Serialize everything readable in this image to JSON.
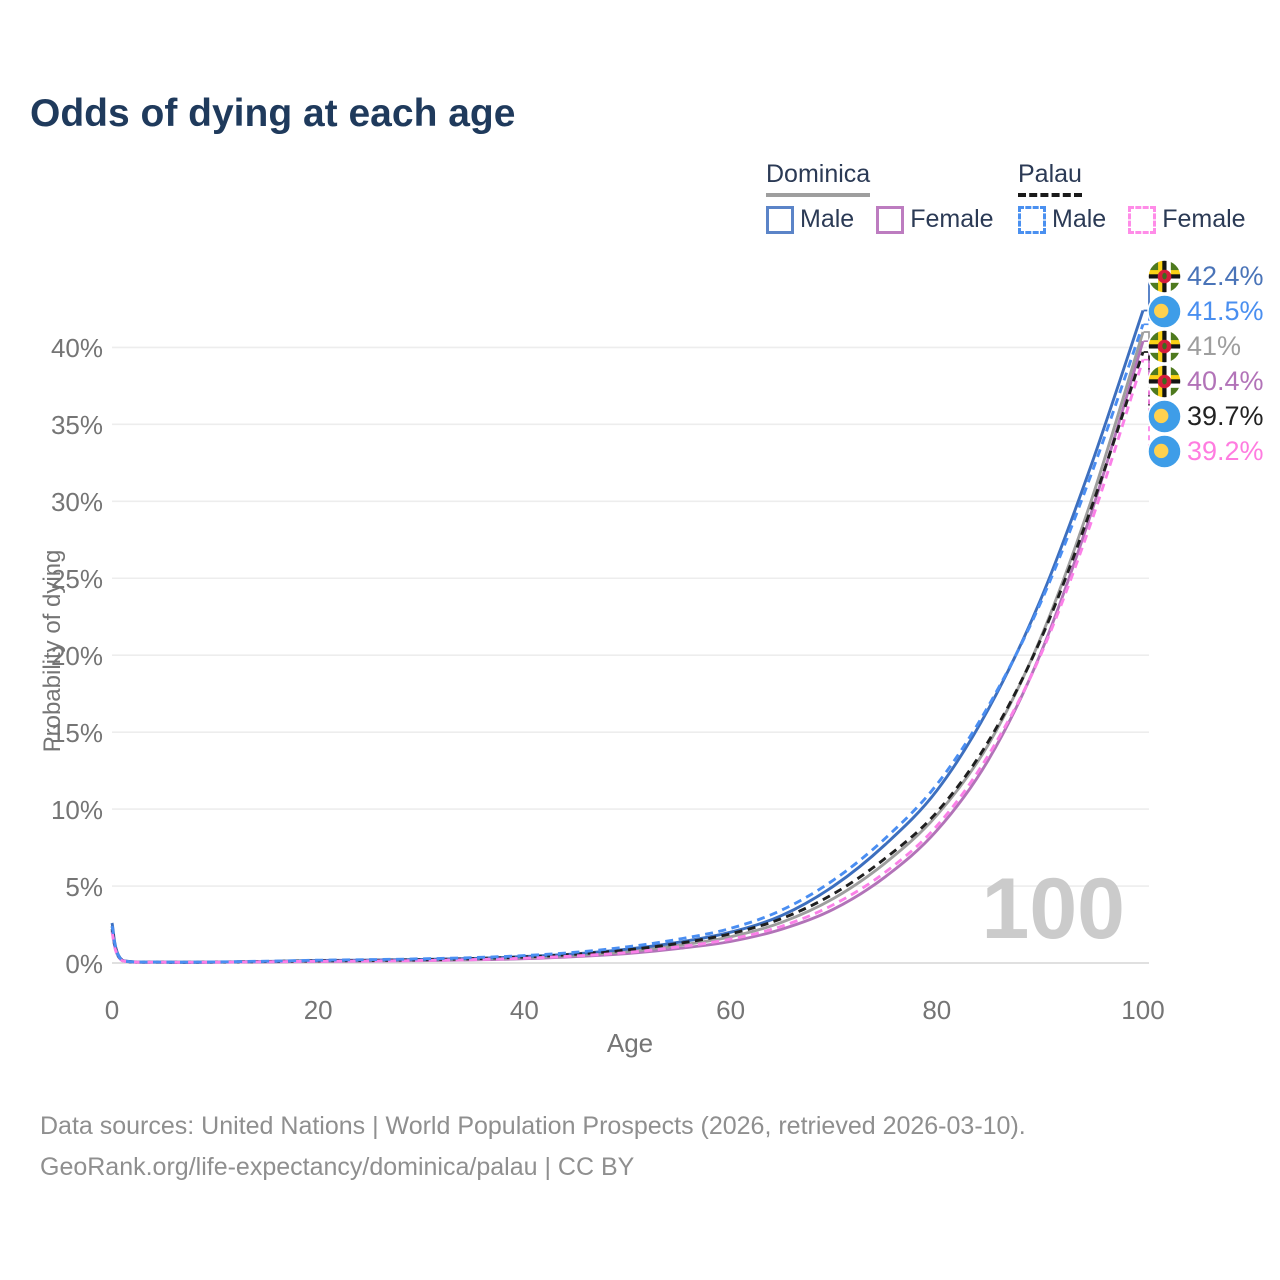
{
  "title": "Odds of dying at each age",
  "age_indicator": "100",
  "legend": {
    "groups": [
      {
        "country": "Dominica",
        "line_style": "solid",
        "underline_color": "#9e9e9e",
        "items": [
          {
            "label": "Male",
            "color": "#5b84c8"
          },
          {
            "label": "Female",
            "color": "#bd7cc0"
          }
        ]
      },
      {
        "country": "Palau",
        "line_style": "dashed",
        "underline_color": "#1a1a1a",
        "items": [
          {
            "label": "Male",
            "color": "#4a90f0"
          },
          {
            "label": "Female",
            "color": "#ff8ce8"
          }
        ]
      }
    ]
  },
  "chart_data": {
    "type": "line",
    "title": "Odds of dying at each age",
    "xlabel": "Age",
    "ylabel": "Probability of dying",
    "xlim": [
      0,
      100
    ],
    "ylim": [
      0,
      44
    ],
    "grid": "horizontal",
    "x_ticks": [
      {
        "label": "0",
        "value": 0
      },
      {
        "label": "20",
        "value": 20
      },
      {
        "label": "40",
        "value": 40
      },
      {
        "label": "60",
        "value": 60
      },
      {
        "label": "80",
        "value": 80
      },
      {
        "label": "100",
        "value": 100
      }
    ],
    "y_ticks": [
      {
        "label": "0%",
        "value": 0
      },
      {
        "label": "5%",
        "value": 5
      },
      {
        "label": "10%",
        "value": 10
      },
      {
        "label": "15%",
        "value": 15
      },
      {
        "label": "20%",
        "value": 20
      },
      {
        "label": "25%",
        "value": 25
      },
      {
        "label": "30%",
        "value": 30
      },
      {
        "label": "35%",
        "value": 35
      },
      {
        "label": "40%",
        "value": 40
      }
    ],
    "x": [
      0,
      1,
      5,
      10,
      15,
      20,
      25,
      30,
      35,
      40,
      45,
      50,
      55,
      60,
      65,
      70,
      75,
      80,
      85,
      90,
      95,
      100
    ],
    "series": [
      {
        "key": "dominica_male",
        "name": "Dominica Male",
        "color": "#3d6fbe",
        "dash": false,
        "values": [
          2.6,
          0.18,
          0.06,
          0.06,
          0.1,
          0.16,
          0.19,
          0.23,
          0.3,
          0.42,
          0.6,
          0.9,
          1.35,
          2.0,
          3.1,
          5.0,
          7.7,
          11.2,
          16.5,
          23.5,
          32.4,
          42.4
        ]
      },
      {
        "key": "dominica_female",
        "name": "Dominica Female",
        "color": "#b273b8",
        "dash": false,
        "values": [
          2.1,
          0.15,
          0.05,
          0.05,
          0.07,
          0.1,
          0.12,
          0.15,
          0.2,
          0.28,
          0.42,
          0.62,
          0.95,
          1.4,
          2.2,
          3.5,
          5.6,
          8.6,
          13.2,
          20.0,
          29.3,
          40.4
        ]
      },
      {
        "key": "dominica_total",
        "name": "Dominica (both sexes)",
        "color": "#9e9e9e",
        "dash": false,
        "values": [
          2.4,
          0.16,
          0.05,
          0.05,
          0.09,
          0.13,
          0.16,
          0.19,
          0.25,
          0.35,
          0.5,
          0.75,
          1.15,
          1.7,
          2.65,
          4.2,
          6.5,
          9.6,
          14.2,
          21.0,
          30.1,
          41.0
        ]
      },
      {
        "key": "palau_male",
        "name": "Palau Male",
        "color": "#4a8ef2",
        "dash": true,
        "values": [
          2.4,
          0.17,
          0.06,
          0.07,
          0.12,
          0.18,
          0.22,
          0.27,
          0.35,
          0.48,
          0.7,
          1.05,
          1.55,
          2.25,
          3.45,
          5.4,
          8.1,
          11.6,
          16.7,
          23.3,
          31.8,
          41.5
        ]
      },
      {
        "key": "palau_female",
        "name": "Palau Female",
        "color": "#fb80e8",
        "dash": true,
        "values": [
          2.0,
          0.15,
          0.05,
          0.05,
          0.08,
          0.11,
          0.13,
          0.16,
          0.22,
          0.31,
          0.46,
          0.68,
          1.05,
          1.55,
          2.4,
          3.8,
          5.9,
          8.9,
          13.5,
          19.9,
          28.7,
          39.2
        ]
      },
      {
        "key": "palau_total",
        "name": "Palau (both sexes)",
        "color": "#1f1f1f",
        "dash": true,
        "values": [
          2.2,
          0.16,
          0.05,
          0.06,
          0.1,
          0.14,
          0.17,
          0.21,
          0.28,
          0.39,
          0.57,
          0.85,
          1.28,
          1.9,
          2.9,
          4.5,
          6.8,
          9.8,
          14.4,
          20.9,
          29.6,
          39.7
        ]
      }
    ],
    "end_labels": [
      {
        "flag": "dominica",
        "series": "dominica_male",
        "label": "42.4%",
        "value": 42.4,
        "color": "#4a74b8"
      },
      {
        "flag": "palau",
        "series": "palau_male",
        "label": "41.5%",
        "value": 41.5,
        "color": "#4a8ff0"
      },
      {
        "flag": "dominica",
        "series": "dominica_total",
        "label": "41%",
        "value": 41.0,
        "color": "#9e9e9e"
      },
      {
        "flag": "dominica",
        "series": "dominica_female",
        "label": "40.4%",
        "value": 40.4,
        "color": "#b273b8"
      },
      {
        "flag": "palau",
        "series": "palau_total",
        "label": "39.7%",
        "value": 39.7,
        "color": "#222222"
      },
      {
        "flag": "palau",
        "series": "palau_female",
        "label": "39.2%",
        "value": 39.2,
        "color": "#ff7ce0"
      }
    ]
  },
  "colors": {
    "title": "#1f3a5c",
    "axis_text": "#757575",
    "gridline": "#ededed",
    "axis_line": "#e0e0e0",
    "watermark": "#cbcbcb",
    "footer_text": "#8f8f8f"
  },
  "footer": {
    "line1": "Data sources: United Nations | World Population Prospects (2026, retrieved 2026-03-10).",
    "line2": "GeoRank.org/life-expectancy/dominica/palau | CC BY"
  }
}
